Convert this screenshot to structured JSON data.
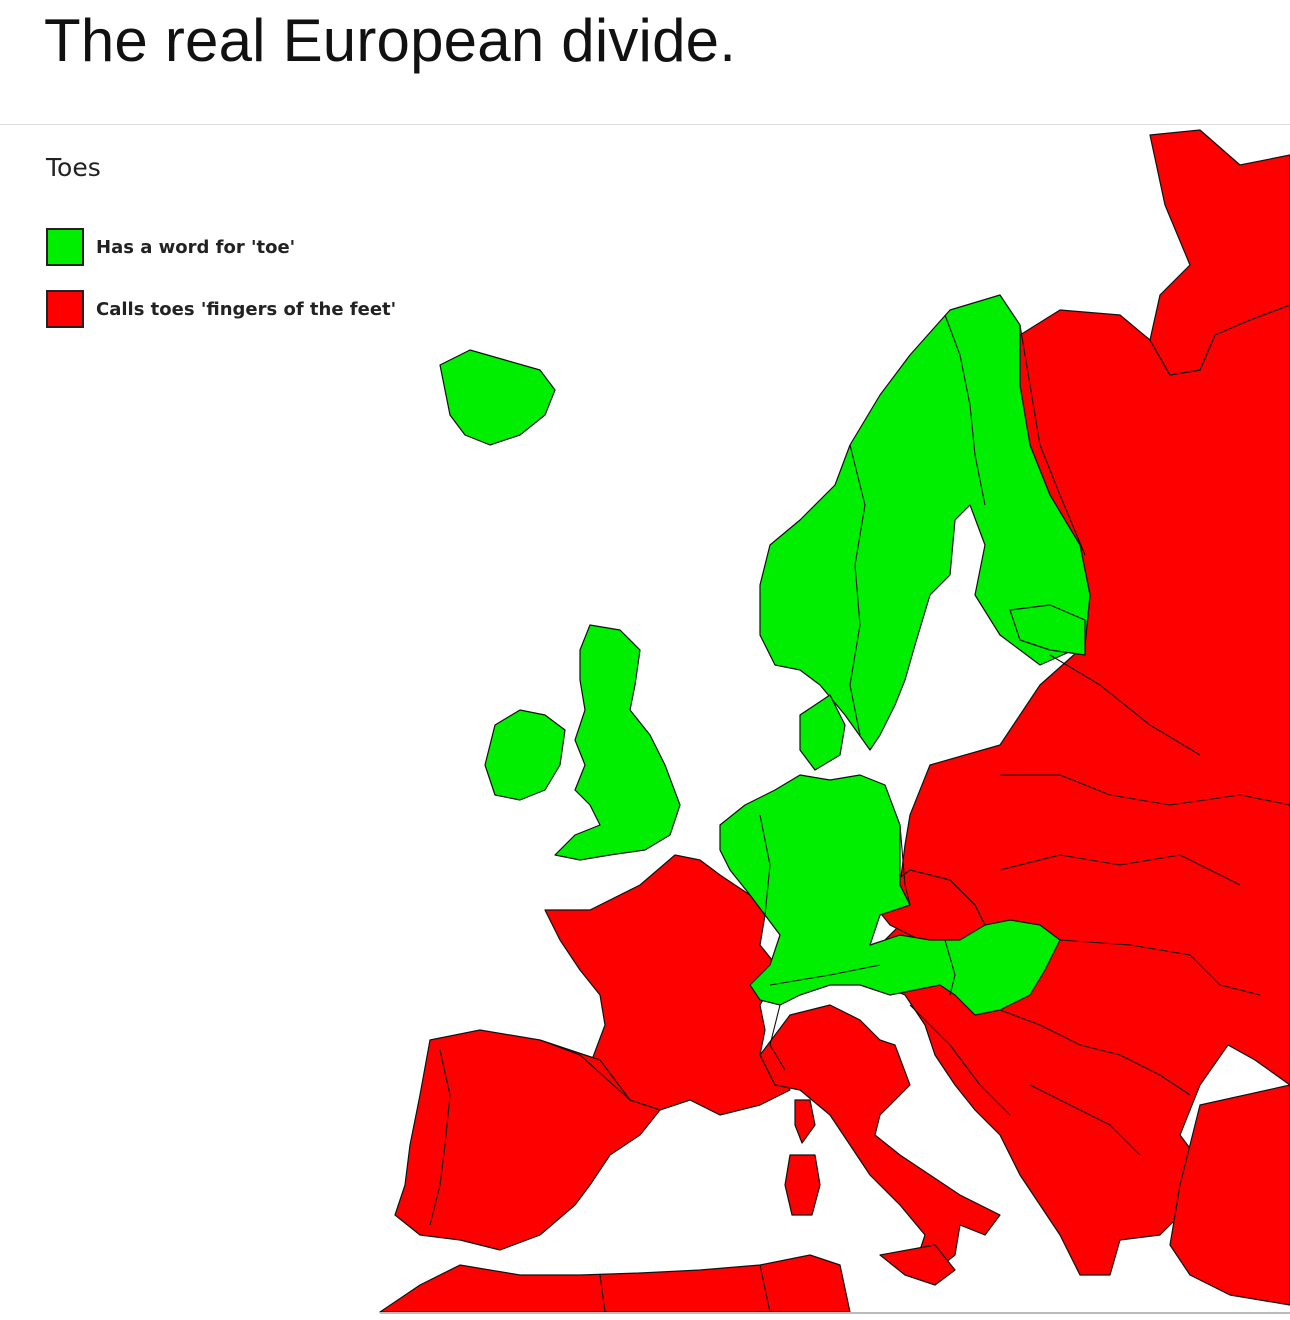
{
  "post": {
    "title": "The real European divide."
  },
  "map": {
    "title": "Toes",
    "legend": [
      {
        "key": "green",
        "label": "Has a word for 'toe'",
        "color": "#00ee00"
      },
      {
        "key": "red",
        "label": "Calls toes 'fingers of the feet'",
        "color": "#ff0000"
      }
    ]
  }
}
